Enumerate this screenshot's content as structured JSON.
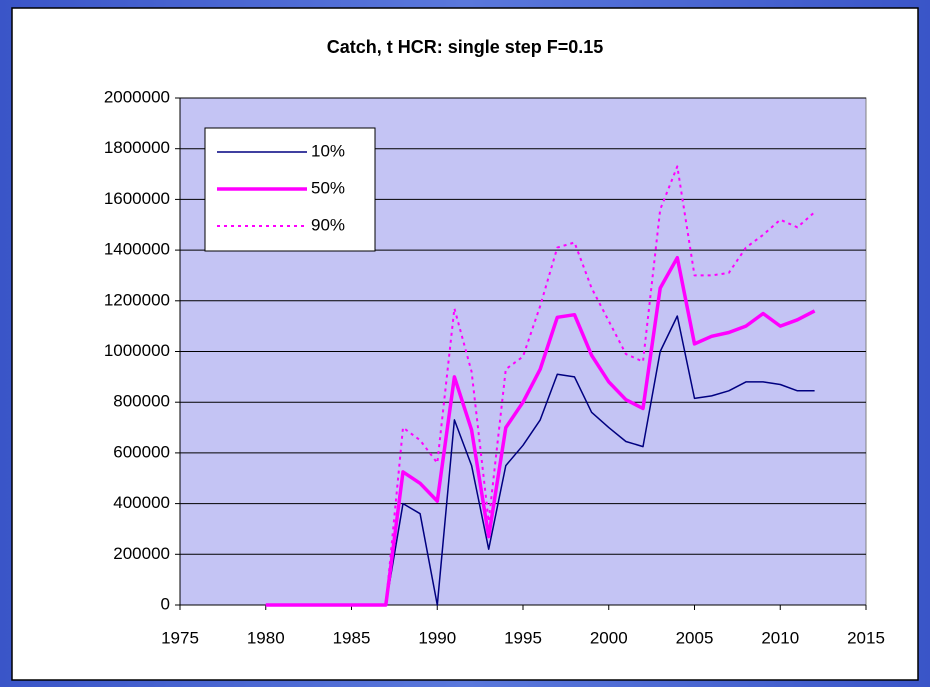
{
  "chart_data": {
    "type": "line",
    "title": "Catch, t HCR: single step  F=0.15",
    "x": [
      1980,
      1981,
      1982,
      1983,
      1984,
      1985,
      1986,
      1987,
      1988,
      1989,
      1990,
      1991,
      1992,
      1993,
      1994,
      1995,
      1996,
      1997,
      1998,
      1999,
      2000,
      2001,
      2002,
      2003,
      2004,
      2005,
      2006,
      2007,
      2008,
      2009,
      2010,
      2011,
      2012
    ],
    "series": [
      {
        "name": "10%",
        "color": "#000080",
        "line_width": 1.5,
        "dash": "solid",
        "values": [
          0,
          0,
          0,
          0,
          0,
          0,
          0,
          0,
          400000,
          360000,
          0,
          730000,
          550000,
          220000,
          550000,
          630000,
          730000,
          910000,
          900000,
          760000,
          700000,
          645000,
          625000,
          1000000,
          1140000,
          815000,
          825000,
          845000,
          880000,
          880000,
          870000,
          845000,
          845000
        ]
      },
      {
        "name": "50%",
        "color": "#ff00ff",
        "line_width": 3.5,
        "dash": "solid",
        "values": [
          0,
          0,
          0,
          0,
          0,
          0,
          0,
          0,
          525000,
          480000,
          410000,
          900000,
          690000,
          270000,
          700000,
          800000,
          930000,
          1135000,
          1145000,
          985000,
          880000,
          810000,
          775000,
          1250000,
          1370000,
          1030000,
          1060000,
          1075000,
          1100000,
          1150000,
          1100000,
          1125000,
          1160000
        ]
      },
      {
        "name": "90%",
        "color": "#ff00ff",
        "line_width": 2,
        "dash": "dotted",
        "values": [
          0,
          0,
          0,
          0,
          0,
          0,
          0,
          0,
          700000,
          650000,
          560000,
          1170000,
          920000,
          330000,
          930000,
          980000,
          1180000,
          1410000,
          1430000,
          1250000,
          1120000,
          990000,
          960000,
          1560000,
          1730000,
          1300000,
          1300000,
          1310000,
          1410000,
          1460000,
          1520000,
          1490000,
          1550000
        ]
      }
    ],
    "xlim": [
      1975,
      2015
    ],
    "xticks": [
      1975,
      1980,
      1985,
      1990,
      1995,
      2000,
      2005,
      2010,
      2015
    ],
    "ylim": [
      0,
      2000000
    ],
    "yticks": [
      0,
      200000,
      400000,
      600000,
      800000,
      1000000,
      1200000,
      1400000,
      1600000,
      1800000,
      2000000
    ],
    "grid": true,
    "legend": "upper left",
    "plot_background": "#c4c4f4"
  }
}
